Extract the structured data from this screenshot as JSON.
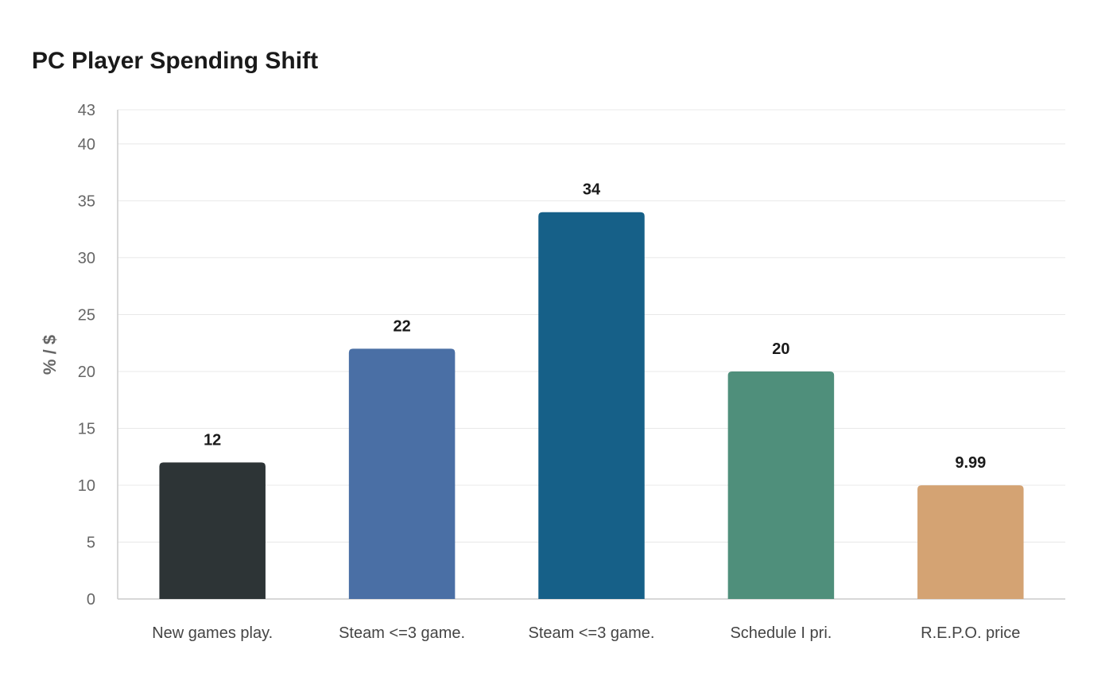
{
  "chart_data": {
    "type": "bar",
    "title": "PC Player Spending Shift",
    "xlabel": "",
    "ylabel": "% / $",
    "ylim": [
      0,
      43
    ],
    "yticks": [
      0,
      5,
      10,
      15,
      20,
      25,
      30,
      35,
      40,
      43
    ],
    "grid": true,
    "legend": "none",
    "categories": [
      "New games play.",
      "Steam <=3 game.",
      "Steam <=3 game.",
      "Schedule I pri.",
      "R.E.P.O. price"
    ],
    "values": [
      12,
      22,
      34,
      20,
      9.99
    ],
    "value_labels": [
      "12",
      "22",
      "34",
      "20",
      "9.99"
    ],
    "colors": [
      "#2d3436",
      "#4a6fa5",
      "#166088",
      "#4f8f7b",
      "#d4a373"
    ]
  }
}
